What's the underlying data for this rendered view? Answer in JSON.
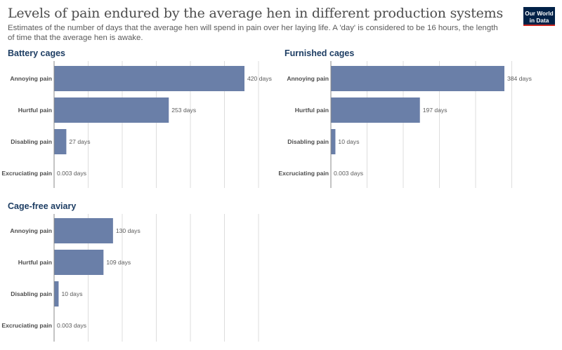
{
  "header": {
    "title": "Levels of pain endured by the average hen in different production systems",
    "subtitle": "Estimates of the number of days that the average hen will spend in pain over her laying life. A 'day' is considered to be 16 hours, the length of time that the average hen is awake.",
    "logo_line1": "Our World",
    "logo_line2": "in Data"
  },
  "colors": {
    "bar": "#6a7fa8",
    "logo_bg": "#002147",
    "logo_accent": "#ce261e"
  },
  "chart_data": [
    {
      "type": "bar",
      "orientation": "horizontal",
      "title": "Battery cages",
      "categories": [
        "Annoying pain",
        "Hurtful pain",
        "Disabling pain",
        "Excruciating pain"
      ],
      "values": [
        420,
        253,
        27,
        0.003
      ],
      "value_labels": [
        "420 days",
        "253 days",
        "27 days",
        "0.003 days"
      ],
      "xlim": [
        0,
        420
      ],
      "grid": true
    },
    {
      "type": "bar",
      "orientation": "horizontal",
      "title": "Furnished cages",
      "categories": [
        "Annoying pain",
        "Hurtful pain",
        "Disabling pain",
        "Excruciating pain"
      ],
      "values": [
        384,
        197,
        10,
        0.003
      ],
      "value_labels": [
        "384 days",
        "197 days",
        "10 days",
        "0.003 days"
      ],
      "xlim": [
        0,
        384
      ],
      "grid": true
    },
    {
      "type": "bar",
      "orientation": "horizontal",
      "title": "Cage-free aviary",
      "categories": [
        "Annoying pain",
        "Hurtful pain",
        "Disabling pain",
        "Excruciating pain"
      ],
      "values": [
        130,
        109,
        10,
        0.003
      ],
      "value_labels": [
        "130 days",
        "109 days",
        "10 days",
        "0.003 days"
      ],
      "xlim": [
        0,
        420
      ],
      "grid": true
    }
  ]
}
